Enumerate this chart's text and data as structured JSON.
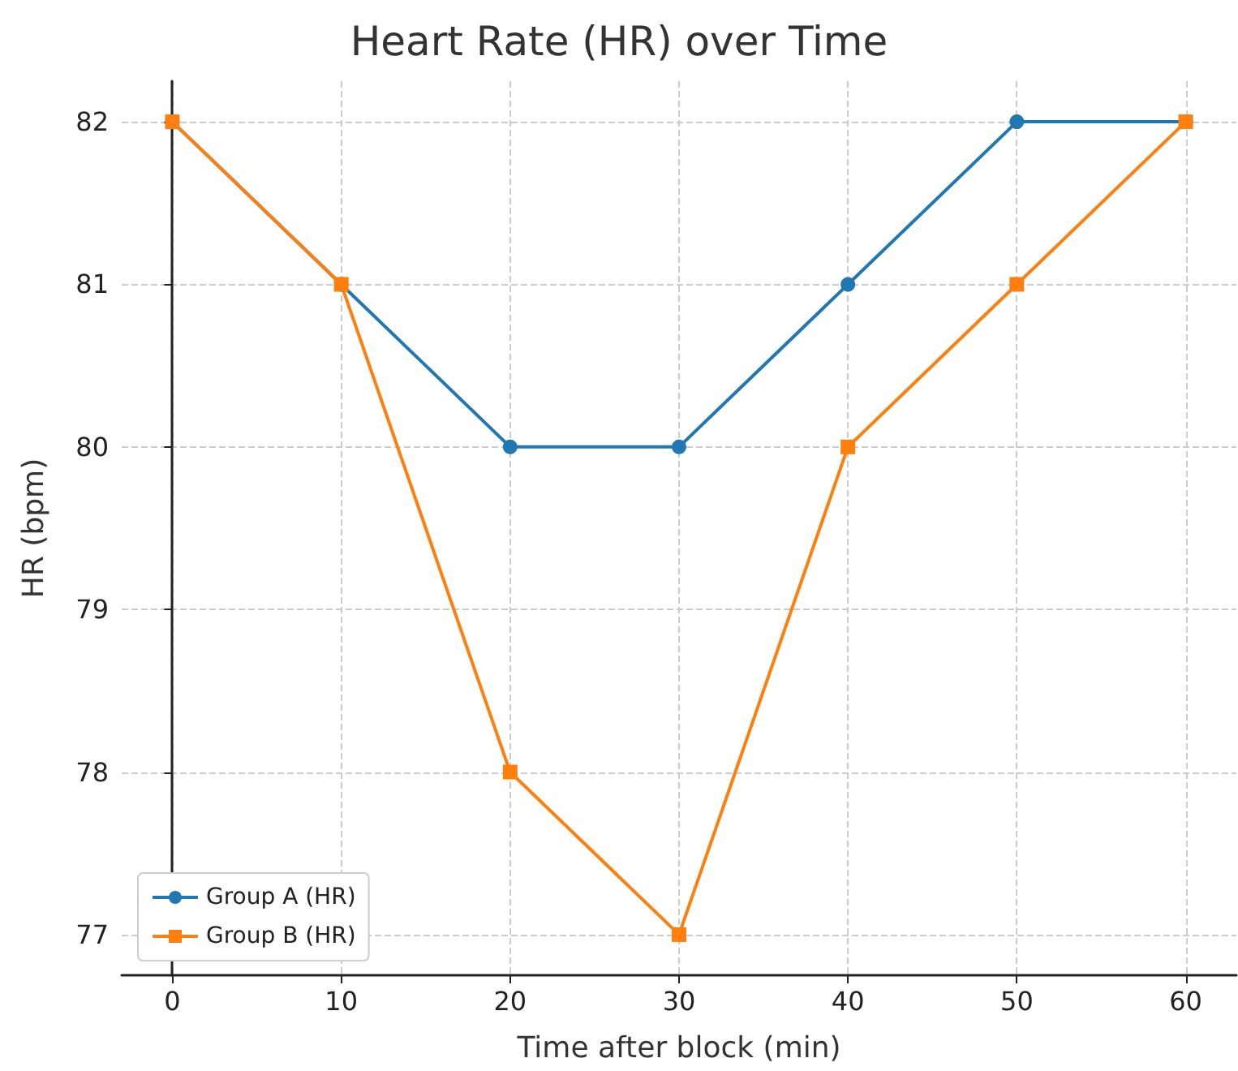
{
  "chart_data": {
    "type": "line",
    "title": "Heart Rate (HR) over Time",
    "xlabel": "Time after block (min)",
    "ylabel": "HR (bpm)",
    "x": [
      0,
      10,
      20,
      30,
      40,
      50,
      60
    ],
    "series": [
      {
        "name": "Group A (HR)",
        "color": "#1f77b4",
        "marker": "circle",
        "values": [
          82,
          81,
          80,
          80,
          81,
          82,
          82
        ]
      },
      {
        "name": "Group B (HR)",
        "color": "#ff7f0e",
        "marker": "square",
        "values": [
          82,
          81,
          78,
          77,
          80,
          81,
          82
        ]
      }
    ],
    "xlim": [
      -3,
      63
    ],
    "xticks": [
      0,
      10,
      20,
      30,
      40,
      50,
      60
    ],
    "ylim": [
      76.75,
      82.25
    ],
    "yticks": [
      77,
      78,
      79,
      80,
      81,
      82
    ],
    "grid": true,
    "legend": "bottom left",
    "line_style": "solid"
  }
}
